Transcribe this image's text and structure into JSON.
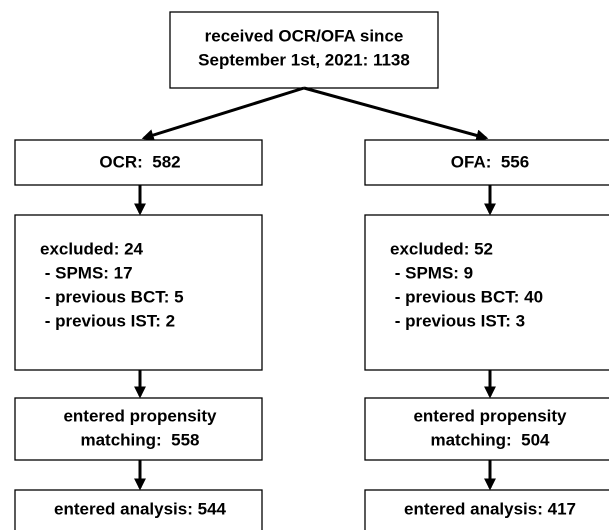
{
  "top": {
    "lines": [
      "received OCR/OFA since",
      "September 1st, 2021: 1138"
    ]
  },
  "columns": [
    {
      "header": "OCR:  582",
      "excluded": [
        "excluded: 24",
        " - SPMS: 17",
        " - previous BCT: 5",
        " - previous IST: 2"
      ],
      "propensity": [
        "entered propensity",
        "matching:  558"
      ],
      "analysis": "entered analysis: 544"
    },
    {
      "header": "OFA:  556",
      "excluded": [
        "excluded: 52",
        " - SPMS: 9",
        " - previous BCT: 40",
        " - previous IST: 3"
      ],
      "propensity": [
        "entered propensity",
        "matching:  504"
      ],
      "analysis": "entered analysis: 417"
    }
  ]
}
